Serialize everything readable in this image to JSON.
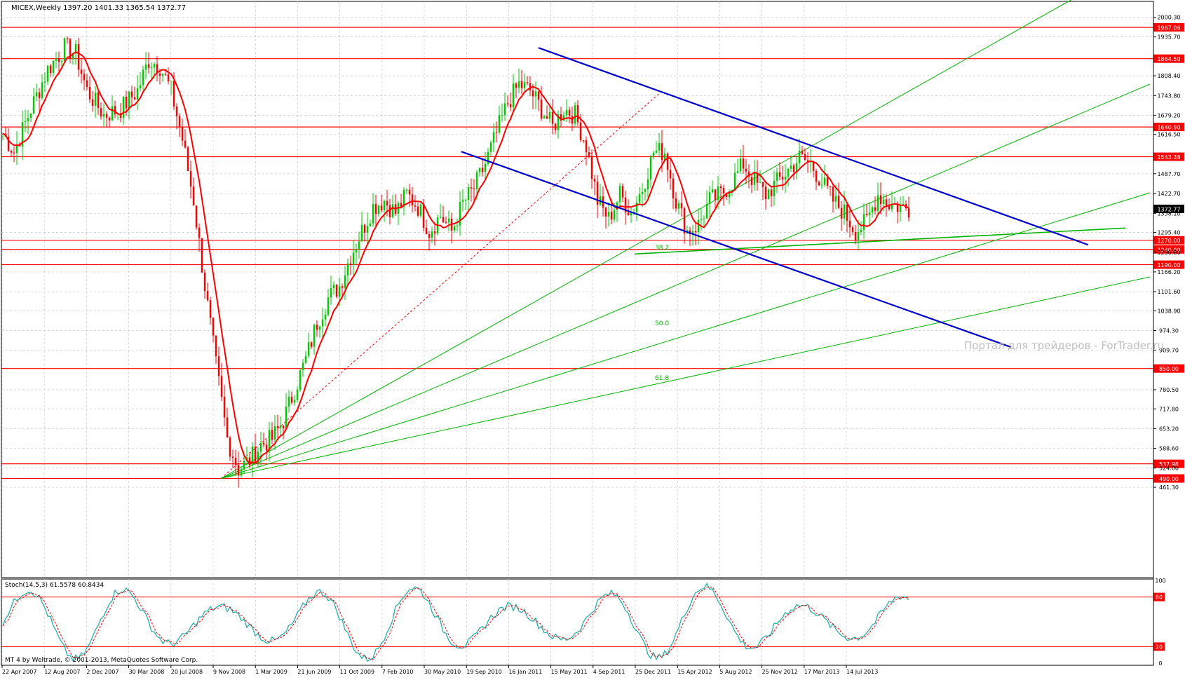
{
  "chart_data": {
    "type": "line",
    "main_label": "MICEX,Weekly  1397.20 1401.33 1365.54 1372.77",
    "symbol": "MICEX",
    "timeframe": "Weekly",
    "ohlc": {
      "open": 1397.2,
      "high": 1401.33,
      "low": 1365.54,
      "close": 1372.77
    },
    "current_price_label": "1372.77",
    "current_price": 1372.77,
    "y_ticks": [
      "2000.30",
      "1935.70",
      "1808.40",
      "1743.80",
      "1679.20",
      "1616.50",
      "1487.70",
      "1422.70",
      "1358.10",
      "1295.40",
      "1230.80",
      "1166.20",
      "1101.60",
      "1038.90",
      "974.30",
      "909.70",
      "780.50",
      "717.80",
      "653.20",
      "588.60",
      "524.00",
      "461.30"
    ],
    "x_ticks": [
      "22 Apr 2007",
      "12 Aug 2007",
      "2 Dec 2007",
      "30 Mar 2008",
      "20 Jul 2008",
      "9 Nov 2008",
      "1 Mar 2009",
      "21 Jun 2009",
      "11 Oct 2009",
      "7 Feb 2010",
      "30 May 2010",
      "19 Sep 2010",
      "16 Jan 2011",
      "15 May 2011",
      "4 Sep 2011",
      "25 Dec 2011",
      "15 Apr 2012",
      "5 Aug 2012",
      "25 Nov 2012",
      "17 Mar 2013",
      "14 Jul 2013"
    ],
    "levels": [
      {
        "label": "1967.06",
        "value": 1967.06
      },
      {
        "label": "1864.50",
        "value": 1864.5
      },
      {
        "label": "1640.90",
        "value": 1640.9
      },
      {
        "label": "1543.38",
        "value": 1543.38
      },
      {
        "label": "1270.00",
        "value": 1270.0
      },
      {
        "label": "1240.00",
        "value": 1240.0
      },
      {
        "label": "1190.00",
        "value": 1190.0
      },
      {
        "label": "850.00",
        "value": 850.0
      },
      {
        "label": "537.98",
        "value": 537.98
      },
      {
        "label": "490.00",
        "value": 490.0
      }
    ],
    "fib_labels": [
      "38.2",
      "50.0",
      "61.8"
    ],
    "watermark": "Портал для трейдеров - ForTrader.ru",
    "stoch": {
      "label": "Stoch(14,5,3) 61.5578 60.8434",
      "main": 61.5578,
      "signal": 60.8434,
      "y_ticks": [
        "100",
        "80",
        "20",
        "0"
      ],
      "levels": [
        80,
        20
      ]
    },
    "copyright": "MT 4 by Weltrade, © 2001-2013, MetaQuotes Software Corp.",
    "colors": {
      "bull": "#00cc00",
      "bear": "#ff0000",
      "ma": "#ff0000",
      "channel": "#0000cc",
      "fan": "#00b400",
      "level": "#ff0000",
      "stoch_main": "#20b2aa",
      "stoch_signal": "#ff0000",
      "grid": "#c8c8c8"
    }
  }
}
